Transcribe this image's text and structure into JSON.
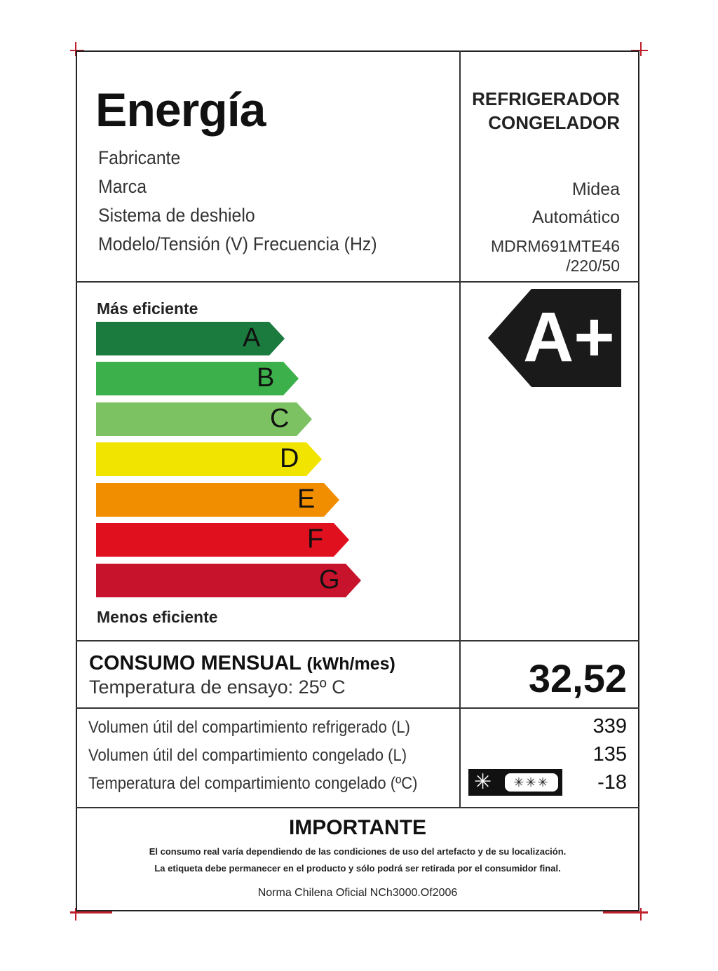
{
  "header": {
    "title": "Energía",
    "category": [
      "REFRIGERADOR",
      "CONGELADOR"
    ]
  },
  "info": [
    {
      "label": "Fabricante",
      "value": ""
    },
    {
      "label": "Marca",
      "value": "Midea"
    },
    {
      "label": "Sistema de deshielo",
      "value": "Automático"
    },
    {
      "label": "Modelo/Tensión (V) Frecuencia (Hz)",
      "value": "MDRM691MTE46",
      "value2": "/220/50"
    }
  ],
  "scale": {
    "top_label": "Más eficiente",
    "bottom_label": "Menos eficiente",
    "classes": [
      {
        "letter": "A",
        "color": "#1b7a3e"
      },
      {
        "letter": "B",
        "color": "#3cb04a"
      },
      {
        "letter": "C",
        "color": "#7cc263"
      },
      {
        "letter": "D",
        "color": "#f1e400"
      },
      {
        "letter": "E",
        "color": "#f18e00"
      },
      {
        "letter": "F",
        "color": "#e0101f"
      },
      {
        "letter": "G",
        "color": "#c7142c"
      }
    ],
    "rating": "A+"
  },
  "consumption": {
    "label": "CONSUMO MENSUAL",
    "unit": "(kWh/mes)",
    "test_temp": "Temperatura de ensayo: 25º C",
    "value": "32,52"
  },
  "volumes": [
    {
      "label": "Volumen útil del compartimiento refrigerado (L)",
      "value": "339"
    },
    {
      "label": "Volumen útil del compartimiento congelado (L)",
      "value": "135"
    },
    {
      "label": "Temperatura del compartimiento congelado (ºC)",
      "value": "-18",
      "icon": "freezer-four-star-icon"
    }
  ],
  "important": {
    "title": "IMPORTANTE",
    "lines": [
      "El consumo real varía dependiendo de las condiciones de uso del artefacto y de su localización.",
      "La etiqueta debe permanecer en el  producto y sólo podrá ser retirada por el consumidor final."
    ],
    "norm": "Norma Chilena Oficial NCh3000.Of2006"
  }
}
